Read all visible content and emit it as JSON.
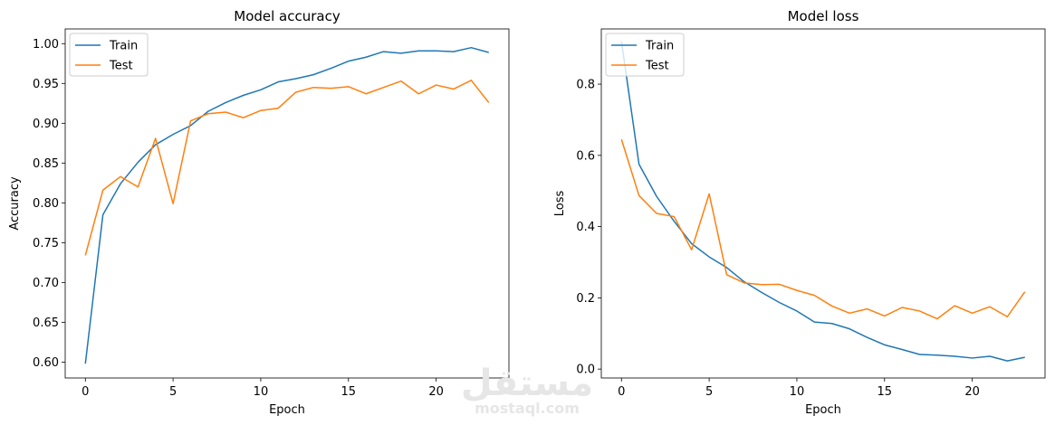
{
  "chart_data": [
    {
      "type": "line",
      "title": "Model accuracy",
      "xlabel": "Epoch",
      "ylabel": "Accuracy",
      "xlim": [
        -1.15,
        24.15
      ],
      "ylim": [
        0.58,
        1.0185
      ],
      "xticks": [
        0,
        5,
        10,
        15,
        20
      ],
      "yticks": [
        0.6,
        0.65,
        0.7,
        0.75,
        0.8,
        0.85,
        0.9,
        0.95,
        1.0
      ],
      "ytick_labels": [
        "0.60",
        "0.65",
        "0.70",
        "0.75",
        "0.80",
        "0.85",
        "0.90",
        "0.95",
        "1.00"
      ],
      "legend_loc": "upper left",
      "x": [
        0,
        1,
        2,
        3,
        4,
        5,
        6,
        7,
        8,
        9,
        10,
        11,
        12,
        13,
        14,
        15,
        16,
        17,
        18,
        19,
        20,
        21,
        22,
        23
      ],
      "series": [
        {
          "name": "Train",
          "color": "#1f77b4",
          "values": [
            0.598,
            0.785,
            0.824,
            0.851,
            0.873,
            0.886,
            0.897,
            0.915,
            0.926,
            0.935,
            0.942,
            0.952,
            0.956,
            0.961,
            0.969,
            0.978,
            0.983,
            0.99,
            0.988,
            0.991,
            0.991,
            0.99,
            0.995,
            0.989
          ]
        },
        {
          "name": "Test",
          "color": "#ff7f0e",
          "values": [
            0.734,
            0.816,
            0.833,
            0.82,
            0.881,
            0.799,
            0.903,
            0.912,
            0.914,
            0.907,
            0.916,
            0.919,
            0.939,
            0.945,
            0.944,
            0.946,
            0.937,
            0.945,
            0.953,
            0.937,
            0.948,
            0.943,
            0.954,
            0.926
          ]
        }
      ]
    },
    {
      "type": "line",
      "title": "Model loss",
      "xlabel": "Epoch",
      "ylabel": "Loss",
      "xlim": [
        -1.15,
        24.15
      ],
      "ylim": [
        -0.025,
        0.955
      ],
      "xticks": [
        0,
        5,
        10,
        15,
        20
      ],
      "yticks": [
        0.0,
        0.2,
        0.4,
        0.6,
        0.8
      ],
      "ytick_labels": [
        "0.0",
        "0.2",
        "0.4",
        "0.6",
        "0.8"
      ],
      "legend_loc": "upper left",
      "x": [
        0,
        1,
        2,
        3,
        4,
        5,
        6,
        7,
        8,
        9,
        10,
        11,
        12,
        13,
        14,
        15,
        16,
        17,
        18,
        19,
        20,
        21,
        22,
        23
      ],
      "series": [
        {
          "name": "Train",
          "color": "#1f77b4",
          "values": [
            0.92,
            0.575,
            0.485,
            0.415,
            0.352,
            0.315,
            0.285,
            0.245,
            0.215,
            0.187,
            0.163,
            0.132,
            0.128,
            0.113,
            0.089,
            0.068,
            0.055,
            0.041,
            0.039,
            0.036,
            0.031,
            0.036,
            0.023,
            0.033
          ]
        },
        {
          "name": "Test",
          "color": "#ff7f0e",
          "values": [
            0.645,
            0.487,
            0.437,
            0.428,
            0.335,
            0.492,
            0.265,
            0.242,
            0.237,
            0.238,
            0.221,
            0.207,
            0.177,
            0.157,
            0.169,
            0.149,
            0.173,
            0.163,
            0.141,
            0.178,
            0.157,
            0.175,
            0.147,
            0.217
          ]
        }
      ]
    }
  ],
  "watermark": {
    "logo_text": "مستقل",
    "url_text": "mostaql.com"
  }
}
